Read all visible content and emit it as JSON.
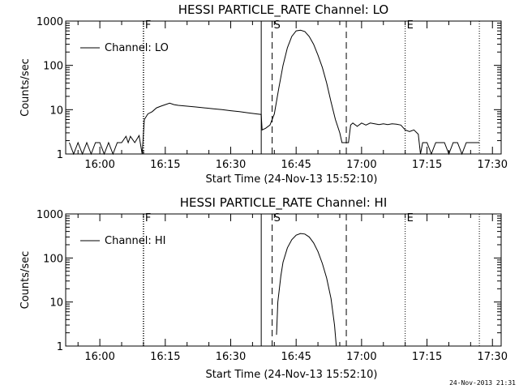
{
  "footer_timestamp": "24-Nov-2013 21:31",
  "chart_data": [
    {
      "type": "line",
      "title": "HESSI PARTICLE_RATE Channel: LO",
      "xlabel": "Start Time (24-Nov-13 15:52:10)",
      "ylabel": "Counts/sec",
      "log_y": true,
      "ylim": [
        1,
        1000
      ],
      "xlim_minutes": [
        15.87,
        17.53
      ],
      "xticks": [
        "16:00",
        "16:15",
        "16:30",
        "16:45",
        "17:00",
        "17:15",
        "17:30"
      ],
      "yticks": [
        "1",
        "10",
        "100",
        "1000"
      ],
      "legend": {
        "label": "Channel: LO",
        "placement": "top-left"
      },
      "markers": [
        {
          "label": "F",
          "time": "16:10",
          "style": "dotted"
        },
        {
          "label": "",
          "time": "16:37",
          "style": "solid"
        },
        {
          "label": "S",
          "time": "16:39.5",
          "style": "dashed"
        },
        {
          "label": "",
          "time": "16:56.5",
          "style": "dashed"
        },
        {
          "label": "E",
          "time": "17:10",
          "style": "dotted"
        },
        {
          "label": "",
          "time": "17:27",
          "style": "dotted"
        }
      ],
      "series": [
        {
          "name": "Channel: LO",
          "points": [
            [
              "15:53",
              1.8
            ],
            [
              "15:54",
              1
            ],
            [
              "15:55",
              1.8
            ],
            [
              "15:56",
              1
            ],
            [
              "15:57",
              1.8
            ],
            [
              "15:58",
              1
            ],
            [
              "15:59",
              1.8
            ],
            [
              "16:00",
              1.8
            ],
            [
              "16:01",
              1
            ],
            [
              "16:02",
              1.8
            ],
            [
              "16:03",
              1
            ],
            [
              "16:04",
              1.8
            ],
            [
              "16:05",
              1.8
            ],
            [
              "16:06",
              2.5
            ],
            [
              "16:06.5",
              1.8
            ],
            [
              "16:07",
              2.5
            ],
            [
              "16:08",
              1.8
            ],
            [
              "16:09",
              2.6
            ],
            [
              "16:09.7",
              1
            ],
            [
              "16:10.2",
              6
            ],
            [
              "16:11",
              8
            ],
            [
              "16:12",
              9
            ],
            [
              "16:13",
              11
            ],
            [
              "16:14",
              12
            ],
            [
              "16:15",
              13
            ],
            [
              "16:16",
              14
            ],
            [
              "16:17",
              13
            ],
            [
              "16:18",
              12.5
            ],
            [
              "16:20",
              12
            ],
            [
              "16:22",
              11.5
            ],
            [
              "16:24",
              11
            ],
            [
              "16:26",
              10.5
            ],
            [
              "16:28",
              10
            ],
            [
              "16:30",
              9.5
            ],
            [
              "16:32",
              9
            ],
            [
              "16:34",
              8.5
            ],
            [
              "16:36",
              8
            ],
            [
              "16:37",
              7.8
            ],
            [
              "16:37.2",
              3.5
            ],
            [
              "16:38",
              3.8
            ],
            [
              "16:39",
              4.5
            ],
            [
              "16:40",
              8
            ],
            [
              "16:41",
              30
            ],
            [
              "16:42",
              100
            ],
            [
              "16:43",
              250
            ],
            [
              "16:44",
              450
            ],
            [
              "16:45",
              600
            ],
            [
              "16:46",
              620
            ],
            [
              "16:47",
              580
            ],
            [
              "16:48",
              450
            ],
            [
              "16:49",
              300
            ],
            [
              "16:50",
              170
            ],
            [
              "16:51",
              90
            ],
            [
              "16:52",
              40
            ],
            [
              "16:53",
              15
            ],
            [
              "16:54",
              6
            ],
            [
              "16:55",
              3
            ],
            [
              "16:55.5",
              1.8
            ],
            [
              "16:57",
              1.8
            ],
            [
              "16:57.5",
              4.5
            ],
            [
              "16:58",
              5
            ],
            [
              "16:59",
              4.2
            ],
            [
              "17:00",
              5
            ],
            [
              "17:01",
              4.5
            ],
            [
              "17:02",
              5
            ],
            [
              "17:03",
              4.8
            ],
            [
              "17:04",
              4.6
            ],
            [
              "17:05",
              4.8
            ],
            [
              "17:06",
              4.6
            ],
            [
              "17:07",
              4.8
            ],
            [
              "17:08",
              4.7
            ],
            [
              "17:09",
              4.5
            ],
            [
              "17:10",
              3.5
            ],
            [
              "17:11",
              3.2
            ],
            [
              "17:12",
              3.5
            ],
            [
              "17:13",
              2.8
            ],
            [
              "17:13.5",
              1
            ],
            [
              "17:14",
              1.8
            ],
            [
              "17:15",
              1.8
            ],
            [
              "17:16",
              1
            ],
            [
              "17:17",
              1.8
            ],
            [
              "17:18",
              1.8
            ],
            [
              "17:19",
              1.8
            ],
            [
              "17:20",
              1
            ],
            [
              "17:21",
              1.8
            ],
            [
              "17:22",
              1.8
            ],
            [
              "17:23",
              1
            ],
            [
              "17:24",
              1.8
            ],
            [
              "17:25",
              1.8
            ],
            [
              "17:26",
              1.8
            ],
            [
              "17:27",
              1.8
            ]
          ]
        }
      ]
    },
    {
      "type": "line",
      "title": "HESSI PARTICLE_RATE Channel: HI",
      "xlabel": "Start Time (24-Nov-13 15:52:10)",
      "ylabel": "Counts/sec",
      "log_y": true,
      "ylim": [
        1,
        1000
      ],
      "xlim_minutes": [
        15.87,
        17.53
      ],
      "xticks": [
        "16:00",
        "16:15",
        "16:30",
        "16:45",
        "17:00",
        "17:15",
        "17:30"
      ],
      "yticks": [
        "1",
        "10",
        "100",
        "1000"
      ],
      "legend": {
        "label": "Channel: HI",
        "placement": "top-left"
      },
      "markers": [
        {
          "label": "F",
          "time": "16:10",
          "style": "dotted"
        },
        {
          "label": "",
          "time": "16:37",
          "style": "solid"
        },
        {
          "label": "S",
          "time": "16:39.5",
          "style": "dashed"
        },
        {
          "label": "",
          "time": "16:56.5",
          "style": "dashed"
        },
        {
          "label": "E",
          "time": "17:10",
          "style": "dotted"
        },
        {
          "label": "",
          "time": "17:27",
          "style": "dotted"
        }
      ],
      "series": [
        {
          "name": "Channel: HI",
          "points": [
            [
              "16:40.5",
              1.8
            ],
            [
              "16:40.8",
              10
            ],
            [
              "16:41.5",
              40
            ],
            [
              "16:42",
              80
            ],
            [
              "16:43",
              170
            ],
            [
              "16:44",
              260
            ],
            [
              "16:45",
              330
            ],
            [
              "16:46",
              360
            ],
            [
              "16:47",
              350
            ],
            [
              "16:48",
              300
            ],
            [
              "16:49",
              220
            ],
            [
              "16:50",
              140
            ],
            [
              "16:51",
              75
            ],
            [
              "16:52",
              35
            ],
            [
              "16:53",
              12
            ],
            [
              "16:53.8",
              3
            ],
            [
              "16:54.2",
              1
            ]
          ]
        }
      ]
    }
  ]
}
